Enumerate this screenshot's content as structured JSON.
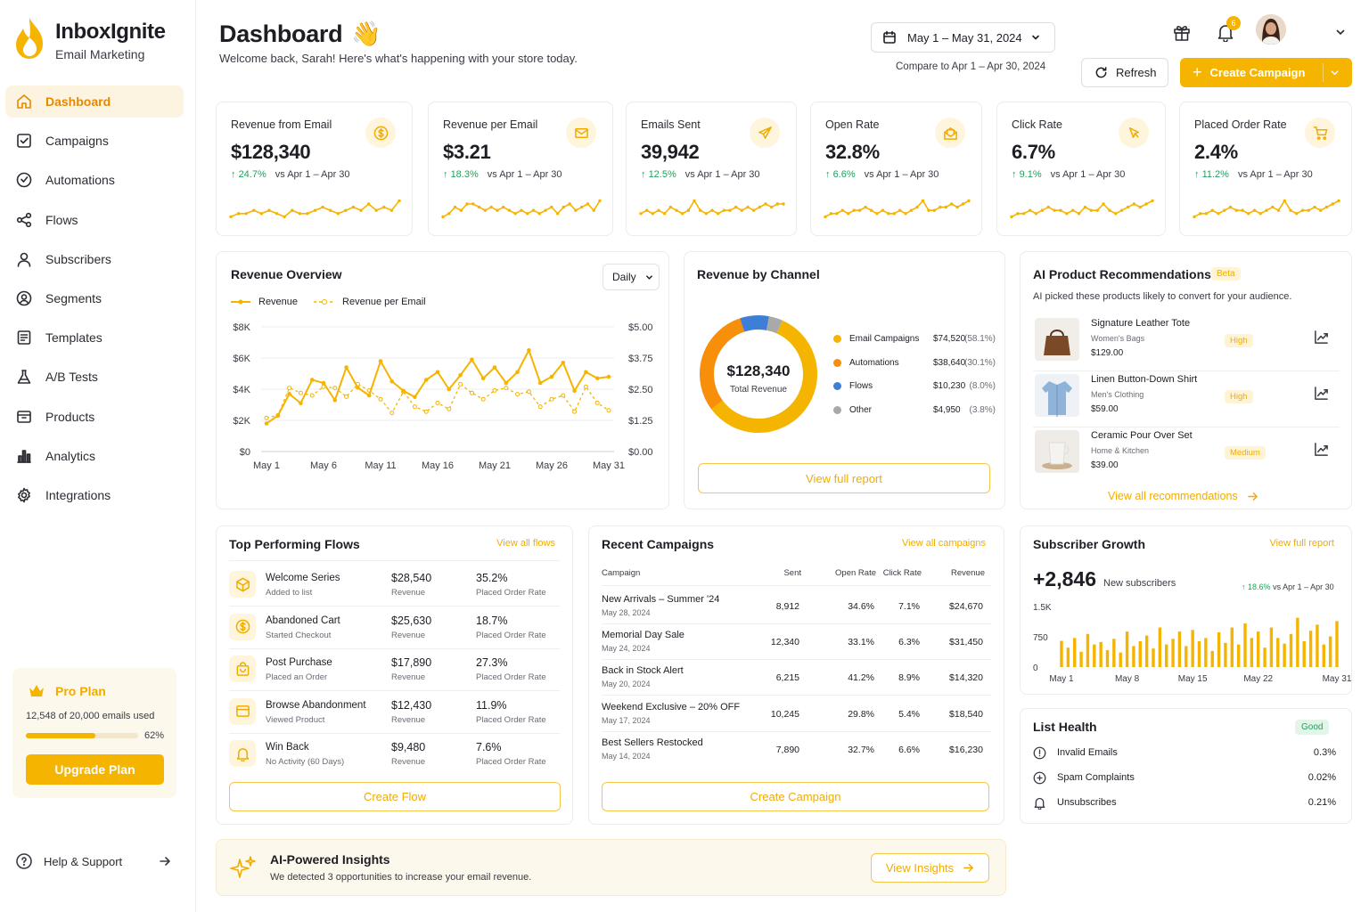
{
  "brand": {
    "name": "InboxIgnite",
    "tagline": "Email Marketing"
  },
  "sidebar": {
    "items": [
      {
        "label": "Dashboard",
        "icon": "home-icon"
      },
      {
        "label": "Campaigns",
        "icon": "checkbox-icon"
      },
      {
        "label": "Automations",
        "icon": "check-circle-icon"
      },
      {
        "label": "Flows",
        "icon": "share-icon"
      },
      {
        "label": "Subscribers",
        "icon": "user-icon"
      },
      {
        "label": "Segments",
        "icon": "segment-icon"
      },
      {
        "label": "Templates",
        "icon": "template-icon"
      },
      {
        "label": "A/B Tests",
        "icon": "flask-icon"
      },
      {
        "label": "Products",
        "icon": "box-icon"
      },
      {
        "label": "Analytics",
        "icon": "bar-chart-icon"
      },
      {
        "label": "Integrations",
        "icon": "gear-icon"
      }
    ],
    "plan": {
      "title": "Pro Plan",
      "usage": "12,548 of 20,000 emails used",
      "percent_label": "62%",
      "percent": 62,
      "button": "Upgrade Plan"
    },
    "help": "Help & Support"
  },
  "header": {
    "title": "Dashboard",
    "subtitle": "Welcome back, Sarah! Here's what's happening with your store today.",
    "date_range": "May 1 – May 31, 2024",
    "compare": "Compare to Apr 1 – Apr 30, 2024",
    "refresh": "Refresh",
    "create": "Create Campaign",
    "notif_count": "6"
  },
  "kpis": [
    {
      "title": "Revenue from Email",
      "value": "$128,340",
      "change": "24.7%",
      "vs": "vs Apr 1 – Apr 30",
      "icon": "dollar-icon",
      "spark": [
        3,
        4,
        4,
        5,
        4,
        5,
        4,
        3,
        5,
        4,
        4,
        5,
        6,
        5,
        4,
        5,
        6,
        5,
        7,
        5,
        6,
        5,
        8
      ]
    },
    {
      "title": "Revenue per Email",
      "value": "$3.21",
      "change": "18.3%",
      "vs": "vs Apr 1 – Apr 30",
      "icon": "mail-icon",
      "spark": [
        3,
        4,
        6,
        5,
        7,
        7,
        6,
        5,
        6,
        5,
        6,
        5,
        4,
        5,
        4,
        5,
        4,
        5,
        6,
        4,
        6,
        7,
        5,
        6,
        7,
        5,
        8
      ]
    },
    {
      "title": "Emails Sent",
      "value": "39,942",
      "change": "12.5%",
      "vs": "vs Apr 1 – Apr 30",
      "icon": "send-icon",
      "spark": [
        4,
        5,
        4,
        5,
        4,
        6,
        5,
        4,
        5,
        8,
        5,
        4,
        5,
        4,
        5,
        5,
        6,
        5,
        6,
        5,
        6,
        7,
        6,
        7,
        7
      ]
    },
    {
      "title": "Open Rate",
      "value": "32.8%",
      "change": "6.6%",
      "vs": "vs Apr 1 – Apr 30",
      "icon": "open-mail-icon",
      "spark": [
        3,
        4,
        4,
        5,
        4,
        5,
        5,
        6,
        5,
        4,
        5,
        4,
        4,
        5,
        4,
        5,
        6,
        8,
        5,
        5,
        6,
        6,
        7,
        6,
        7,
        8
      ]
    },
    {
      "title": "Click Rate",
      "value": "6.7%",
      "change": "9.1%",
      "vs": "vs Apr 1 – Apr 30",
      "icon": "cursor-icon",
      "spark": [
        3,
        4,
        4,
        5,
        4,
        5,
        6,
        5,
        5,
        4,
        5,
        4,
        6,
        5,
        5,
        7,
        5,
        4,
        5,
        6,
        7,
        6,
        7,
        8
      ]
    },
    {
      "title": "Placed Order Rate",
      "value": "2.4%",
      "change": "11.2%",
      "vs": "vs Apr 1 – Apr 30",
      "icon": "cart-icon",
      "spark": [
        3,
        4,
        4,
        5,
        4,
        5,
        6,
        5,
        5,
        4,
        5,
        4,
        5,
        6,
        5,
        8,
        5,
        4,
        5,
        5,
        6,
        5,
        6,
        7,
        8
      ]
    }
  ],
  "revenue_overview": {
    "title": "Revenue Overview",
    "period": "Daily",
    "legend": [
      "Revenue",
      "Revenue per Email"
    ],
    "yleft": [
      "$8K",
      "$6K",
      "$4K",
      "$2K",
      "$0"
    ],
    "yright": [
      "$5.00",
      "$3.75",
      "$2.50",
      "$1.25",
      "$0.00"
    ],
    "xlabels": [
      "May 1",
      "May 6",
      "May 11",
      "May 16",
      "May 21",
      "May 26",
      "May 31"
    ]
  },
  "chart_data": {
    "type": "line",
    "x": [
      "May 1",
      "May 2",
      "May 3",
      "May 4",
      "May 5",
      "May 6",
      "May 7",
      "May 8",
      "May 9",
      "May 10",
      "May 11",
      "May 12",
      "May 13",
      "May 14",
      "May 15",
      "May 16",
      "May 17",
      "May 18",
      "May 19",
      "May 20",
      "May 21",
      "May 22",
      "May 23",
      "May 24",
      "May 25",
      "May 26",
      "May 27",
      "May 28",
      "May 29",
      "May 30",
      "May 31"
    ],
    "series": [
      {
        "name": "Revenue",
        "axis": "left",
        "values": [
          1800,
          2300,
          3700,
          3100,
          4600,
          4400,
          3300,
          5400,
          4100,
          3600,
          5800,
          4500,
          3900,
          3500,
          4600,
          5100,
          4000,
          4900,
          5900,
          4700,
          5400,
          4400,
          5100,
          6500,
          4400,
          4800,
          5700,
          3900,
          5100,
          4700,
          4800
        ]
      },
      {
        "name": "Revenue per Email",
        "axis": "right",
        "values": [
          1.35,
          1.45,
          2.55,
          2.35,
          2.25,
          2.6,
          2.55,
          2.2,
          2.7,
          2.45,
          2.1,
          1.55,
          2.4,
          1.8,
          1.6,
          1.95,
          1.7,
          2.7,
          2.35,
          2.1,
          2.45,
          2.55,
          2.3,
          2.4,
          1.8,
          2.1,
          2.25,
          1.6,
          2.6,
          1.95,
          1.65
        ]
      }
    ],
    "ylim_left": [
      0,
      8000
    ],
    "ylim_right": [
      0,
      5
    ],
    "colors": [
      "#f5b400",
      "#f5b400"
    ],
    "grid": true,
    "legend": "top-left"
  },
  "channels": {
    "title": "Revenue by Channel",
    "total": "$128,340",
    "total_label": "Total Revenue",
    "link": "View full report",
    "items": [
      {
        "name": "Email Campaigns",
        "value": "$74,520",
        "pct": "(58.1%)",
        "share": 58.1,
        "color": "#f5b400"
      },
      {
        "name": "Automations",
        "value": "$38,640",
        "pct": "(30.1%)",
        "share": 30.1,
        "color": "#f78f0a"
      },
      {
        "name": "Flows",
        "value": "$10,230",
        "pct": "(8.0%)",
        "share": 8.0,
        "color": "#3d7fd6"
      },
      {
        "name": "Other",
        "value": "$4,950",
        "pct": "(3.8%)",
        "share": 3.8,
        "color": "#a9a9a9"
      }
    ]
  },
  "ai_products": {
    "title": "AI Product Recommendations",
    "beta": "Beta",
    "subtitle": "AI picked these products likely to convert for your audience.",
    "link": "View all recommendations",
    "items": [
      {
        "name": "Signature Leather Tote",
        "category": "Women's Bags",
        "price": "$129.00",
        "tag": "High"
      },
      {
        "name": "Linen Button-Down Shirt",
        "category": "Men's Clothing",
        "price": "$59.00",
        "tag": "High"
      },
      {
        "name": "Ceramic Pour Over Set",
        "category": "Home & Kitchen",
        "price": "$39.00",
        "tag": "Medium"
      }
    ]
  },
  "flows": {
    "title": "Top Performing Flows",
    "link": "View all flows",
    "button": "Create Flow",
    "items": [
      {
        "name": "Welcome Series",
        "trigger": "Added to list",
        "revenue": "$28,540",
        "revenue_label": "Revenue",
        "rate": "35.2%",
        "rate_label": "Placed Order Rate",
        "icon": "cube-icon"
      },
      {
        "name": "Abandoned Cart",
        "trigger": "Started Checkout",
        "revenue": "$25,630",
        "revenue_label": "Revenue",
        "rate": "18.7%",
        "rate_label": "Placed Order Rate",
        "icon": "dollar-icon"
      },
      {
        "name": "Post Purchase",
        "trigger": "Placed an Order",
        "revenue": "$17,890",
        "revenue_label": "Revenue",
        "rate": "27.3%",
        "rate_label": "Placed Order Rate",
        "icon": "bag-icon"
      },
      {
        "name": "Browse Abandonment",
        "trigger": "Viewed Product",
        "revenue": "$12,430",
        "revenue_label": "Revenue",
        "rate": "11.9%",
        "rate_label": "Placed Order Rate",
        "icon": "window-icon"
      },
      {
        "name": "Win Back",
        "trigger": "No Activity (60 Days)",
        "revenue": "$9,480",
        "revenue_label": "Revenue",
        "rate": "7.6%",
        "rate_label": "Placed Order Rate",
        "icon": "bell-icon"
      }
    ]
  },
  "campaigns": {
    "title": "Recent Campaigns",
    "link": "View all campaigns",
    "button": "Create Campaign",
    "headers": [
      "Campaign",
      "Sent",
      "Open Rate",
      "Click Rate",
      "Revenue"
    ],
    "rows": [
      {
        "name": "New Arrivals – Summer '24",
        "date": "May 28, 2024",
        "sent": "8,912",
        "open": "34.6%",
        "click": "7.1%",
        "revenue": "$24,670"
      },
      {
        "name": "Memorial Day Sale",
        "date": "May 24, 2024",
        "sent": "12,340",
        "open": "33.1%",
        "click": "6.3%",
        "revenue": "$31,450"
      },
      {
        "name": "Back in Stock Alert",
        "date": "May 20, 2024",
        "sent": "6,215",
        "open": "41.2%",
        "click": "8.9%",
        "revenue": "$14,320"
      },
      {
        "name": "Weekend Exclusive – 20% OFF",
        "date": "May 17, 2024",
        "sent": "10,245",
        "open": "29.8%",
        "click": "5.4%",
        "revenue": "$18,540"
      },
      {
        "name": "Best Sellers Restocked",
        "date": "May 14, 2024",
        "sent": "7,890",
        "open": "32.7%",
        "click": "6.6%",
        "revenue": "$16,230"
      }
    ]
  },
  "subscribers": {
    "title": "Subscriber Growth",
    "link": "View full report",
    "value": "+2,846",
    "label": "New subscribers",
    "change": "18.6%",
    "vs": "vs Apr 1 – Apr 30",
    "yticks": [
      "1.5K",
      "750",
      "0"
    ],
    "xlabels": [
      "May 1",
      "May 8",
      "May 15",
      "May 22",
      "May 31"
    ],
    "bars": [
      650,
      480,
      720,
      380,
      820,
      560,
      620,
      420,
      700,
      360,
      880,
      520,
      640,
      780,
      460,
      980,
      560,
      700,
      880,
      520,
      920,
      640,
      720,
      400,
      860,
      600,
      980,
      560,
      1080,
      720,
      880,
      480,
      980,
      720,
      580,
      820,
      1220,
      640,
      900,
      1050,
      560,
      760,
      1140
    ]
  },
  "list_health": {
    "title": "List Health",
    "status": "Good",
    "items": [
      {
        "label": "Invalid Emails",
        "value": "0.3%"
      },
      {
        "label": "Spam Complaints",
        "value": "0.02%"
      },
      {
        "label": "Unsubscribes",
        "value": "0.21%"
      }
    ]
  },
  "insights": {
    "title": "AI-Powered Insights",
    "text": "We detected 3 opportunities to increase your email revenue.",
    "button": "View Insights"
  }
}
